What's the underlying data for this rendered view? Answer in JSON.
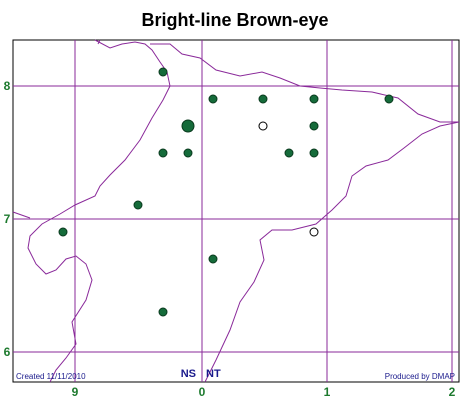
{
  "header": {
    "title": "Bright-line Brown-eye"
  },
  "map": {
    "northing_labels": [
      "8",
      "7",
      "6"
    ],
    "easting_labels": [
      "9",
      "0",
      "1",
      "2"
    ],
    "square_labels": [
      "NS",
      "NT"
    ]
  },
  "footer": {
    "created": "Created 11/11/2010",
    "producer": "Produced by DMAP"
  }
}
